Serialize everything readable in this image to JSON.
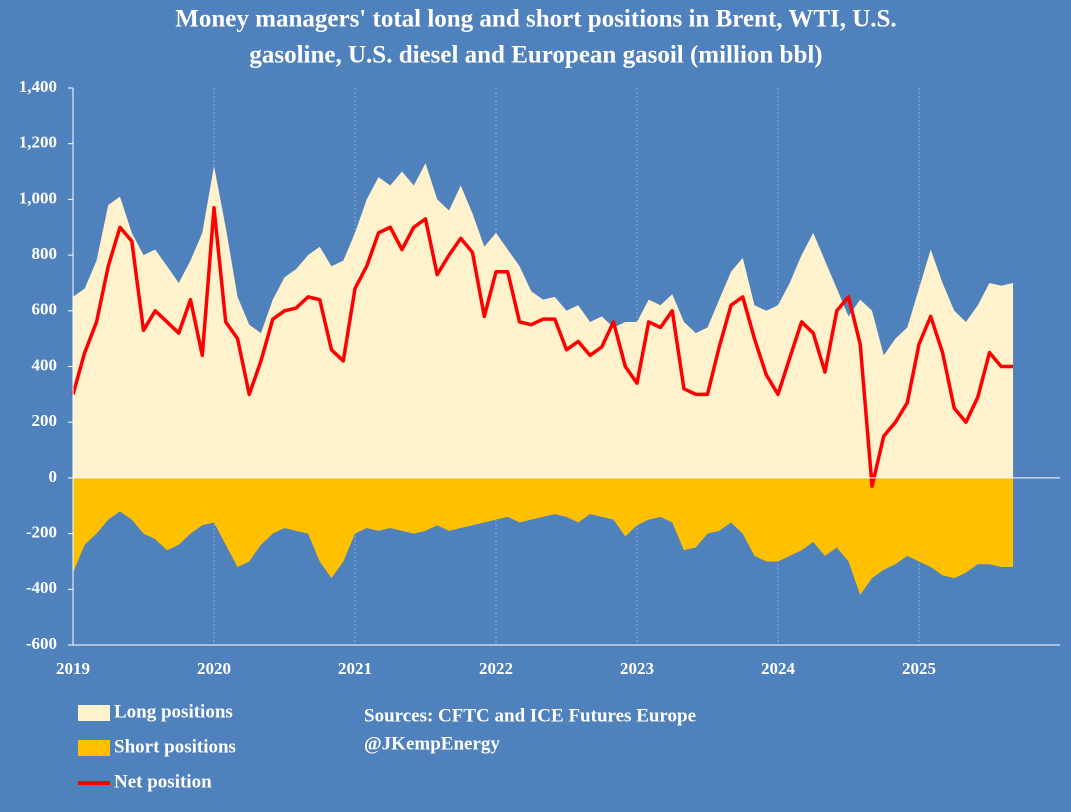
{
  "chart_data": {
    "type": "area",
    "title": [
      "Money managers' total long and short positions in Brent, WTI, U.S.",
      "gasoline, U.S. diesel and European gasoil  (million bbl)"
    ],
    "sources": [
      "Sources: CFTC and ICE Futures Europe",
      "@JKempEnergy"
    ],
    "x": [
      2019,
      2019.083,
      2019.167,
      2019.25,
      2019.333,
      2019.417,
      2019.5,
      2019.583,
      2019.667,
      2019.75,
      2019.833,
      2019.917,
      2020,
      2020.083,
      2020.167,
      2020.25,
      2020.333,
      2020.417,
      2020.5,
      2020.583,
      2020.667,
      2020.75,
      2020.833,
      2020.917,
      2021,
      2021.083,
      2021.167,
      2021.25,
      2021.333,
      2021.417,
      2021.5,
      2021.583,
      2021.667,
      2021.75,
      2021.833,
      2021.917,
      2022,
      2022.083,
      2022.167,
      2022.25,
      2022.333,
      2022.417,
      2022.5,
      2022.583,
      2022.667,
      2022.75,
      2022.833,
      2022.917,
      2023,
      2023.083,
      2023.167,
      2023.25,
      2023.333,
      2023.417,
      2023.5,
      2023.583,
      2023.667,
      2023.75,
      2023.833,
      2023.917,
      2024,
      2024.083,
      2024.167,
      2024.25,
      2024.333,
      2024.417,
      2024.5,
      2024.583,
      2024.667,
      2024.75,
      2024.833,
      2024.917,
      2025,
      2025.083,
      2025.167,
      2025.25,
      2025.333,
      2025.417,
      2025.5,
      2025.583,
      2025.667
    ],
    "series": [
      {
        "name": "Long positions",
        "color": "#fff2cc",
        "kind": "area",
        "values": [
          650,
          680,
          780,
          980,
          1010,
          880,
          800,
          820,
          760,
          700,
          780,
          880,
          1120,
          900,
          650,
          550,
          520,
          640,
          720,
          750,
          800,
          830,
          760,
          780,
          880,
          1000,
          1080,
          1050,
          1100,
          1050,
          1130,
          1000,
          960,
          1050,
          950,
          830,
          880,
          820,
          760,
          670,
          640,
          650,
          600,
          620,
          560,
          580,
          540,
          560,
          560,
          640,
          620,
          660,
          560,
          520,
          540,
          640,
          740,
          790,
          620,
          600,
          620,
          700,
          800,
          880,
          780,
          680,
          580,
          640,
          600,
          440,
          500,
          540,
          680,
          820,
          700,
          600,
          560,
          620,
          700,
          690,
          700
        ]
      },
      {
        "name": "Short positions",
        "color": "#ffc000",
        "kind": "area",
        "values": [
          -340,
          -240,
          -200,
          -150,
          -120,
          -150,
          -200,
          -220,
          -260,
          -240,
          -200,
          -170,
          -160,
          -240,
          -320,
          -300,
          -240,
          -200,
          -180,
          -190,
          -200,
          -300,
          -360,
          -300,
          -200,
          -180,
          -190,
          -180,
          -190,
          -200,
          -190,
          -170,
          -190,
          -180,
          -170,
          -160,
          -150,
          -140,
          -160,
          -150,
          -140,
          -130,
          -140,
          -160,
          -130,
          -140,
          -150,
          -210,
          -170,
          -150,
          -140,
          -160,
          -260,
          -250,
          -200,
          -190,
          -160,
          -200,
          -280,
          -300,
          -300,
          -280,
          -260,
          -230,
          -280,
          -250,
          -300,
          -420,
          -360,
          -330,
          -310,
          -280,
          -300,
          -320,
          -350,
          -360,
          -340,
          -310,
          -310,
          -320,
          -320
        ]
      },
      {
        "name": "Net position",
        "color": "#ff0000",
        "kind": "line",
        "values": [
          300,
          450,
          560,
          760,
          900,
          850,
          530,
          600,
          560,
          520,
          640,
          440,
          970,
          560,
          500,
          300,
          420,
          570,
          600,
          610,
          650,
          640,
          460,
          420,
          680,
          760,
          880,
          900,
          820,
          900,
          930,
          730,
          800,
          860,
          810,
          580,
          740,
          740,
          560,
          550,
          570,
          570,
          460,
          490,
          440,
          470,
          560,
          400,
          340,
          560,
          540,
          600,
          320,
          300,
          300,
          470,
          620,
          650,
          500,
          370,
          300,
          430,
          560,
          520,
          380,
          600,
          650,
          480,
          -30,
          150,
          200,
          270,
          480,
          580,
          450,
          250,
          200,
          290,
          450,
          400,
          400
        ]
      }
    ],
    "xlim": [
      2019,
      2026
    ],
    "xticks": [
      2019,
      2020,
      2021,
      2022,
      2023,
      2024,
      2025
    ],
    "ylim": [
      -600,
      1400
    ],
    "yticks": [
      {
        "value": 1400,
        "label": "1,400"
      },
      {
        "value": 1200,
        "label": "1,200"
      },
      {
        "value": 1000,
        "label": "1,000"
      },
      800,
      600,
      400,
      200,
      0,
      -200,
      -400,
      -600
    ],
    "grid": "x"
  }
}
